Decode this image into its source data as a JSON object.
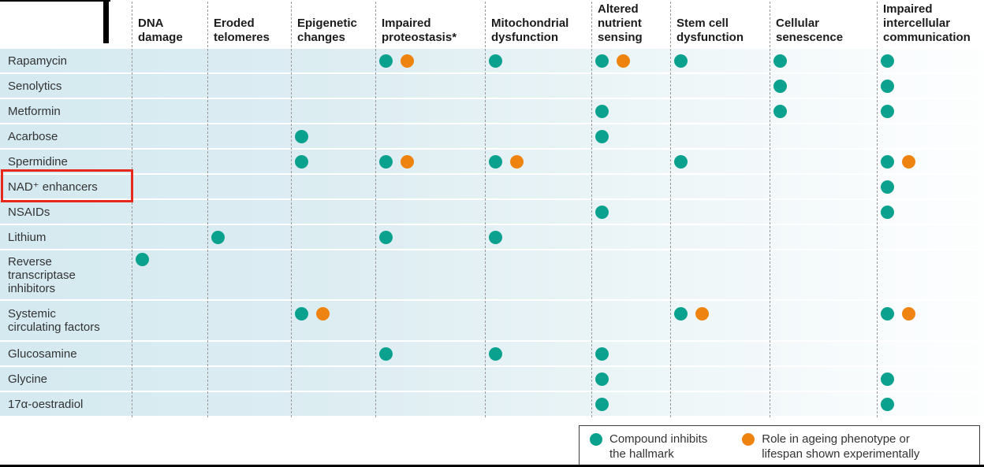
{
  "chart_data": {
    "type": "table",
    "title": "",
    "columns": [
      "DNA\ndamage",
      "Eroded\ntelomeres",
      "Epigenetic\nchanges",
      "Impaired\nproteostasis*",
      "Mitochondrial\ndysfunction",
      "Altered\nnutrient\nsensing",
      "Stem cell\ndysfunction",
      "Cellular\nsenescence",
      "Impaired\nintercellular\ncommunication"
    ],
    "cell_codes": {
      "T": "teal dot = compound inhibits the hallmark",
      "O": "orange dot = role in ageing phenotype or lifespan shown experimentally"
    },
    "rows": [
      {
        "label": "Rapamycin",
        "cells": [
          "",
          "",
          "",
          "TO",
          "T",
          "TO",
          "T",
          "T",
          "T"
        ]
      },
      {
        "label": "Senolytics",
        "cells": [
          "",
          "",
          "",
          "",
          "",
          "",
          "",
          "T",
          "T"
        ]
      },
      {
        "label": "Metformin",
        "cells": [
          "",
          "",
          "",
          "",
          "",
          "T",
          "",
          "T",
          "T"
        ]
      },
      {
        "label": "Acarbose",
        "cells": [
          "",
          "",
          "T",
          "",
          "",
          "T",
          "",
          "",
          ""
        ]
      },
      {
        "label": "Spermidine",
        "cells": [
          "",
          "",
          "T",
          "TO",
          "TO",
          "",
          "T",
          "",
          "TO"
        ]
      },
      {
        "label": "NAD⁺ enhancers",
        "cells": [
          "",
          "",
          "",
          "",
          "",
          "",
          "",
          "",
          "T"
        ],
        "highlighted": true
      },
      {
        "label": "NSAIDs",
        "cells": [
          "",
          "",
          "",
          "",
          "",
          "T",
          "",
          "",
          "T"
        ]
      },
      {
        "label": "Lithium",
        "cells": [
          "",
          "T",
          "",
          "T",
          "T",
          "",
          "",
          "",
          ""
        ]
      },
      {
        "label": "Reverse\ntranscriptase\ninhibitors",
        "cells": [
          "T",
          "",
          "",
          "",
          "",
          "",
          "",
          "",
          ""
        ]
      },
      {
        "label": "Systemic\ncirculating factors",
        "cells": [
          "",
          "",
          "TO",
          "",
          "",
          "",
          "TO",
          "",
          "TO"
        ]
      },
      {
        "label": "Glucosamine",
        "cells": [
          "",
          "",
          "",
          "T",
          "T",
          "T",
          "",
          "",
          ""
        ]
      },
      {
        "label": "Glycine",
        "cells": [
          "",
          "",
          "",
          "",
          "",
          "T",
          "",
          "",
          "T"
        ]
      },
      {
        "label": "17α-oestradiol",
        "cells": [
          "",
          "",
          "",
          "",
          "",
          "T",
          "",
          "",
          "T"
        ]
      }
    ]
  },
  "legend": {
    "items": [
      {
        "color": "#0aa28f",
        "line1": "Compound inhibits",
        "line2": "the hallmark"
      },
      {
        "color": "#ee840f",
        "line1": "Role in ageing phenotype or",
        "line2": "lifespan shown experimentally"
      }
    ]
  },
  "colors": {
    "teal": "#0aa28f",
    "orange": "#ee840f",
    "band_left": "#d4eaf0",
    "highlight_box": "#e8271d",
    "dashed_line": "#999999",
    "header_text": "#1c1c1c",
    "label_text": "#333333"
  }
}
